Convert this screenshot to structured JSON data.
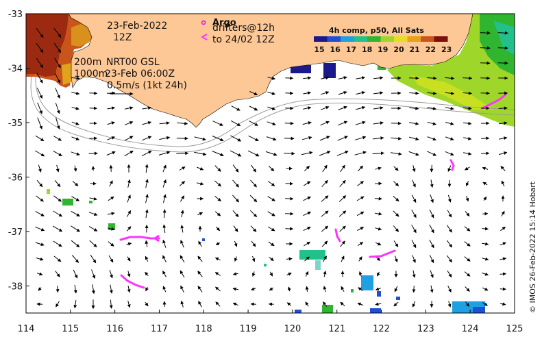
{
  "map": {
    "x_ticks": [
      "114",
      "115",
      "116",
      "117",
      "118",
      "119",
      "120",
      "121",
      "122",
      "123",
      "124",
      "125"
    ],
    "y_ticks": [
      "-33",
      "-34",
      "-35",
      "-36",
      "-37",
      "-38"
    ],
    "lon_range": [
      114,
      125
    ],
    "lat_range": [
      -38.5,
      -33
    ]
  },
  "annotations": {
    "date": "23-Feb-2022",
    "time": "12Z",
    "legend_argo": "Argo",
    "legend_drifters": "drifters@12h",
    "legend_track": "to 24/02 12Z",
    "contour_200": "200m",
    "contour_1000": "1000m",
    "product": "NRT00 GSL",
    "product_date": "23-Feb 06:00Z",
    "scale_label": "0.5m/s (1kt 24h)"
  },
  "colorbar": {
    "title": "4h comp, p50, All Sats",
    "labels": [
      "15",
      "16",
      "17",
      "18",
      "19",
      "20",
      "21",
      "22",
      "23"
    ],
    "colors": [
      "#1a1a8c",
      "#1f4fd8",
      "#1fa0e0",
      "#22c08a",
      "#2fb52f",
      "#9fd62a",
      "#e5e01f",
      "#e8a21a",
      "#c9551a",
      "#7a1010"
    ]
  },
  "credit": "© IMOS 26-Feb-2022 15:14 Hobart",
  "colors": {
    "land": "#fdc896",
    "drifter": "#ff33ff",
    "argo": "#ff00ff",
    "arrow": "#000000",
    "contour": "#9a9a9a"
  }
}
